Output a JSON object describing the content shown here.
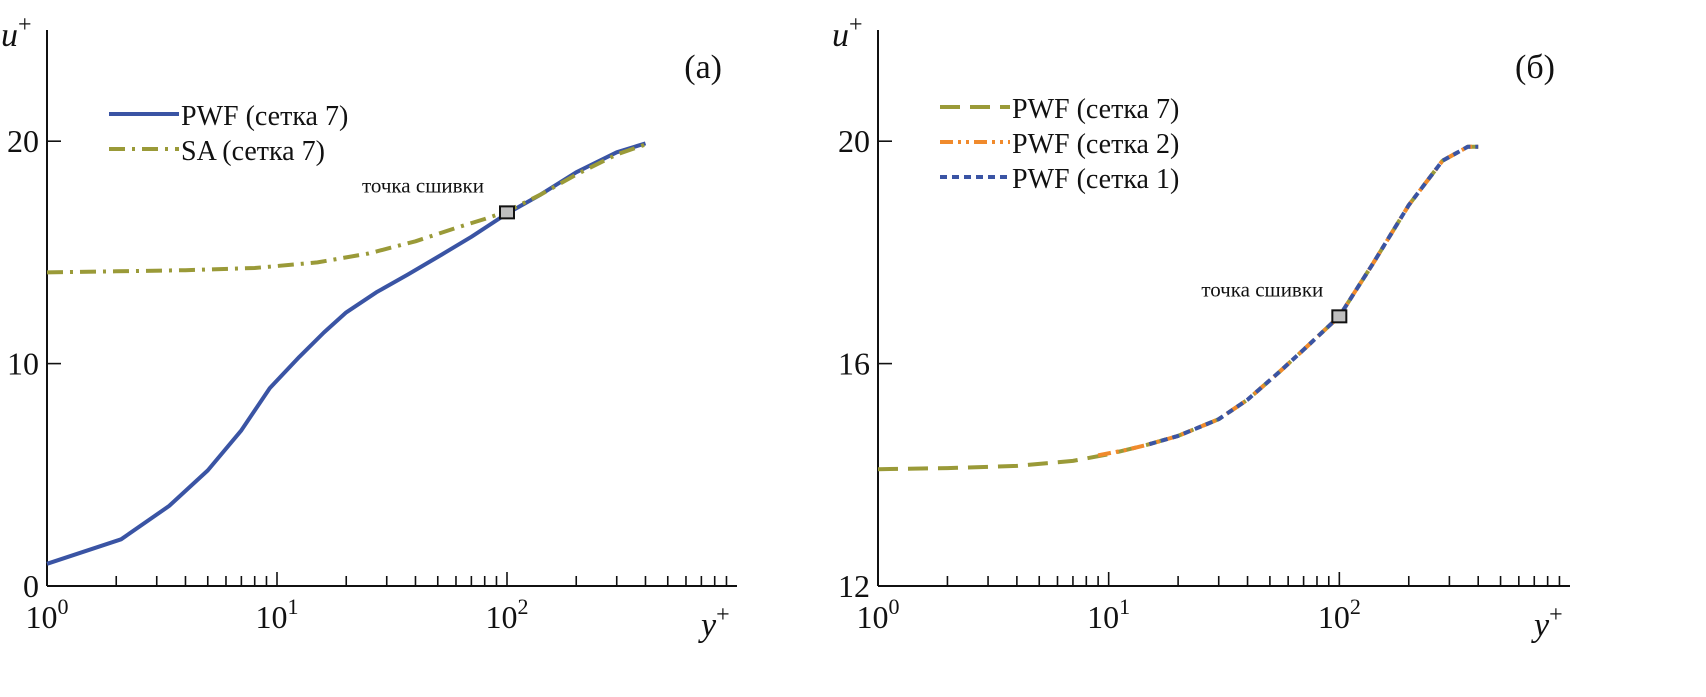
{
  "chart_data": [
    {
      "type": "line",
      "panel_label": "(a)",
      "xlabel_base": "y",
      "ylabel_base": "u",
      "axis_label_sup": "+",
      "xscale": "log",
      "xlim": [
        1,
        1000
      ],
      "ylim": [
        0,
        25
      ],
      "yticks": [
        "0",
        "10",
        "20"
      ],
      "ytick_values": [
        0,
        10,
        20
      ],
      "xticks": [
        {
          "base": "10",
          "exp": "0",
          "value": 1
        },
        {
          "base": "10",
          "exp": "1",
          "value": 10
        },
        {
          "base": "10",
          "exp": "2",
          "value": 100
        }
      ],
      "legend_position": "top-left",
      "annotation": {
        "text": "точка сшивки",
        "x": 100,
        "y": 16.8
      },
      "series": [
        {
          "name": "PWF (сетка 7)",
          "color": "#3a54a4",
          "style": "solid",
          "x": [
            1,
            2.1,
            3.4,
            5,
            7,
            9.3,
            12.5,
            16,
            20,
            27,
            37,
            52,
            70,
            100,
            140,
            200,
            300,
            400
          ],
          "y": [
            1.0,
            2.1,
            3.6,
            5.2,
            7.0,
            8.9,
            10.3,
            11.4,
            12.3,
            13.2,
            14.0,
            14.9,
            15.7,
            16.75,
            17.6,
            18.6,
            19.5,
            19.9
          ]
        },
        {
          "name": "SA (сетка 7)",
          "color": "#9a9a38",
          "style": "dashdot",
          "x": [
            1,
            2,
            4,
            8,
            15,
            25,
            40,
            60,
            80,
            100,
            140,
            200,
            300,
            400
          ],
          "y": [
            14.1,
            14.15,
            14.2,
            14.3,
            14.55,
            14.95,
            15.5,
            16.1,
            16.5,
            16.85,
            17.6,
            18.5,
            19.4,
            19.85
          ]
        }
      ]
    },
    {
      "type": "line",
      "panel_label": "(б)",
      "xlabel_base": "y",
      "ylabel_base": "u",
      "axis_label_sup": "+",
      "xscale": "log",
      "xlim": [
        1,
        1000
      ],
      "ylim": [
        12,
        22
      ],
      "yticks": [
        "12",
        "16",
        "20"
      ],
      "ytick_values": [
        12,
        16,
        20
      ],
      "xticks": [
        {
          "base": "10",
          "exp": "0",
          "value": 1
        },
        {
          "base": "10",
          "exp": "1",
          "value": 10
        },
        {
          "base": "10",
          "exp": "2",
          "value": 100
        }
      ],
      "legend_position": "top-left",
      "annotation": {
        "text": "точка сшивки",
        "x": 100,
        "y": 16.85
      },
      "series": [
        {
          "name": "PWF (сетка 7)",
          "color": "#9a9a38",
          "style": "dash",
          "x": [
            1,
            2,
            4,
            7,
            10,
            15,
            20,
            30,
            40,
            55,
            70,
            100,
            140,
            200,
            280,
            360,
            400
          ],
          "y": [
            14.1,
            14.12,
            14.16,
            14.25,
            14.37,
            14.55,
            14.7,
            15.0,
            15.35,
            15.85,
            16.25,
            16.85,
            17.8,
            18.85,
            19.65,
            19.9,
            19.9
          ]
        },
        {
          "name": "PWF (сетка 2)",
          "color": "#f08a2c",
          "style": "dashdotdot",
          "x": [
            9,
            12,
            15,
            20,
            30,
            40,
            55,
            70,
            100,
            140,
            200,
            280,
            360,
            400
          ],
          "y": [
            14.35,
            14.45,
            14.55,
            14.7,
            15.0,
            15.35,
            15.85,
            16.25,
            16.85,
            17.8,
            18.85,
            19.65,
            19.9,
            19.9
          ]
        },
        {
          "name": "PWF (сетка 1)",
          "color": "#3a54a4",
          "style": "dot",
          "x": [
            15,
            20,
            30,
            40,
            55,
            70,
            100,
            140,
            200,
            280,
            360,
            400
          ],
          "y": [
            14.55,
            14.7,
            15.0,
            15.35,
            15.85,
            16.25,
            16.85,
            17.8,
            18.85,
            19.65,
            19.9,
            19.9
          ]
        }
      ]
    }
  ]
}
